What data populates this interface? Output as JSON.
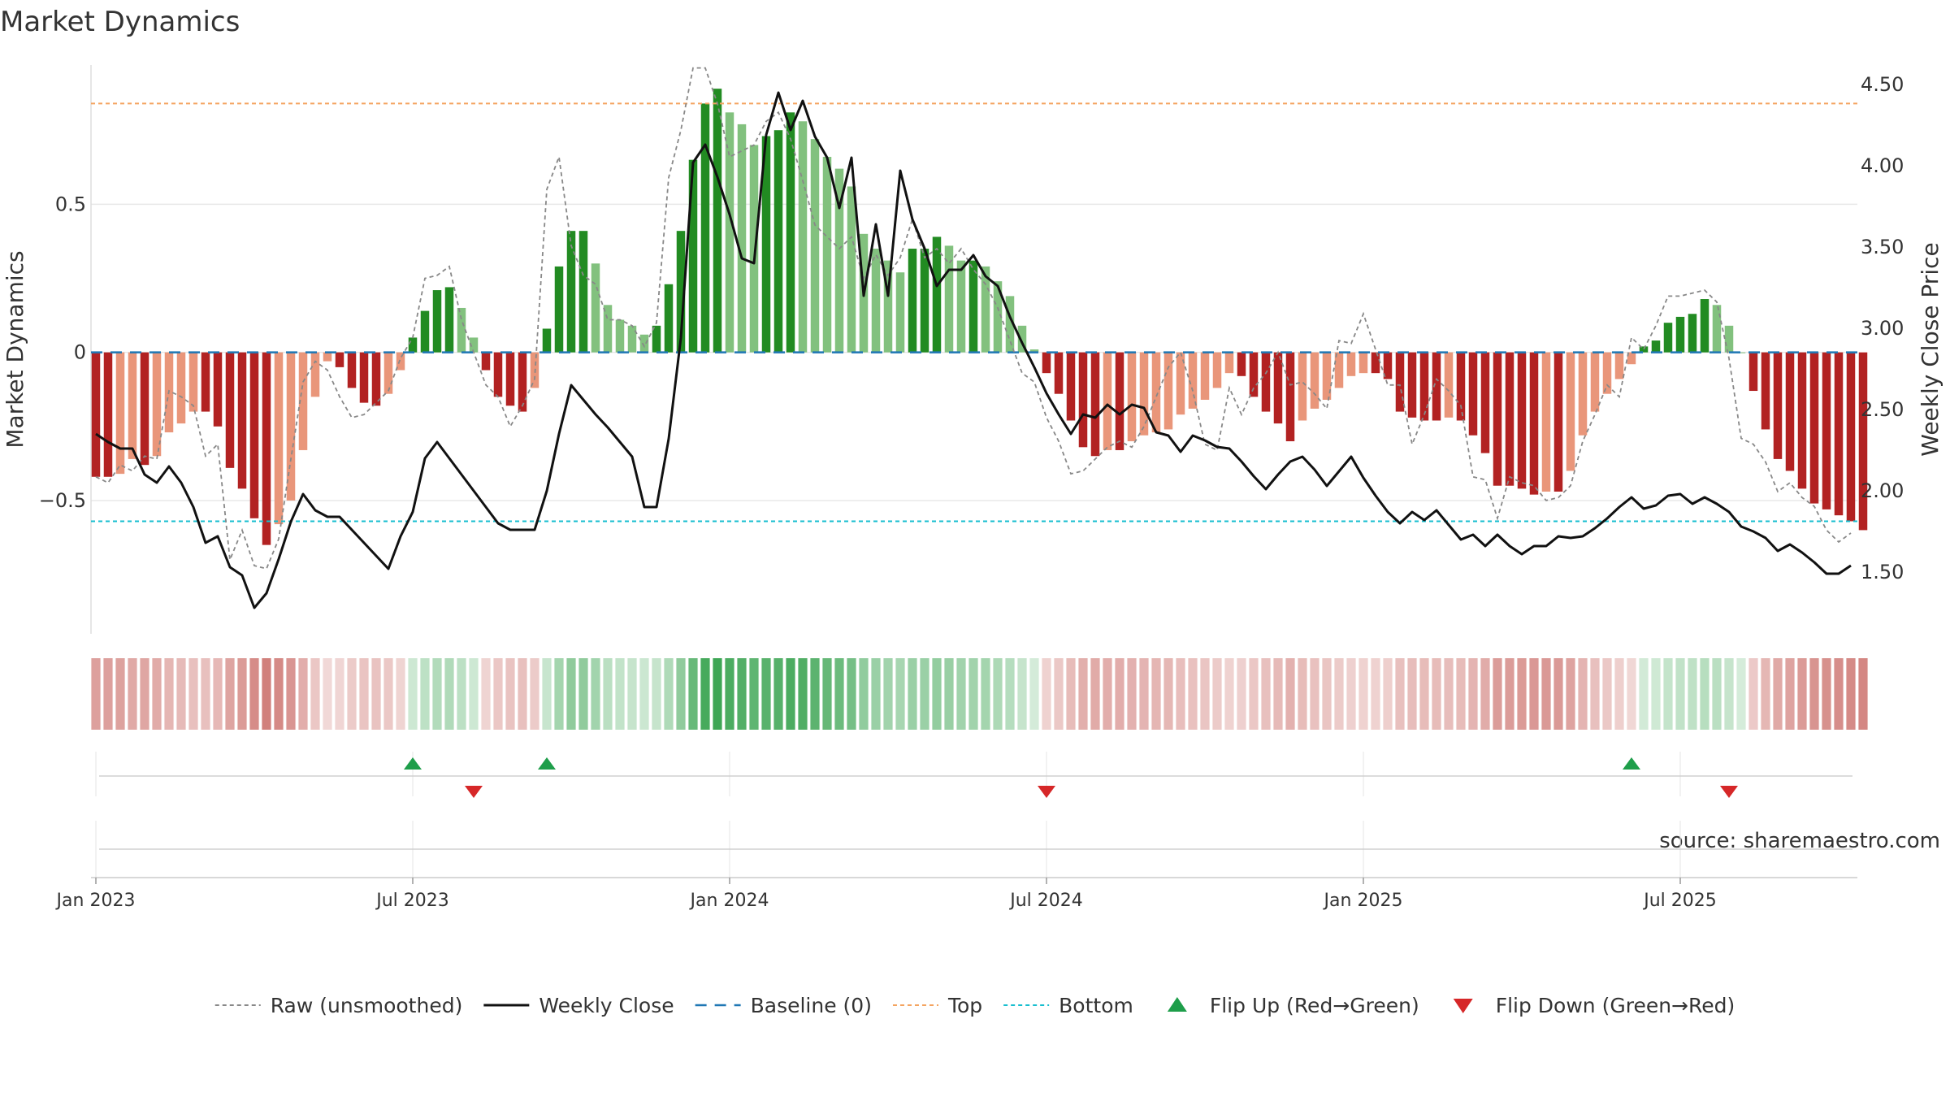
{
  "chart_data": {
    "type": "bar",
    "title": "Market Dynamics",
    "ylabel": "Market Dynamics",
    "y2label": "Weekly Close Price",
    "ylim": [
      -0.95,
      0.97
    ],
    "y2lim": [
      1.12,
      4.62
    ],
    "yticks": [
      {
        "v": 0.5,
        "label": "0.5"
      },
      {
        "v": 0,
        "label": "0"
      },
      {
        "v": -0.5,
        "label": "−0.5"
      }
    ],
    "y2ticks": [
      "4.50",
      "4.00",
      "3.50",
      "3.00",
      "2.50",
      "2.00",
      "1.50"
    ],
    "xticks": [
      "Jan 2023",
      "Jul 2023",
      "Jan 2024",
      "Jul 2024",
      "Jan 2025",
      "Jul 2025"
    ],
    "xtick_weeks": [
      0,
      26,
      52,
      78,
      104,
      130
    ],
    "top_level": 0.84,
    "bottom_level": -0.57,
    "grid": true,
    "legend_position": "bottom",
    "colors": {
      "strong_up": "#228b22",
      "weak_up": "#82c17e",
      "strong_down": "#b22222",
      "weak_down": "#e9967a",
      "price": "#111111",
      "raw": "#888888",
      "baseline": "#1f77b4",
      "top": "#f4a460",
      "bottom": "#17becf",
      "flip_up": "#1e9e4a",
      "flip_down": "#d62728"
    },
    "weeks": 145,
    "bars": [
      -0.42,
      -0.42,
      -0.41,
      -0.36,
      -0.38,
      -0.35,
      -0.27,
      -0.24,
      -0.2,
      -0.2,
      -0.25,
      -0.39,
      -0.46,
      -0.56,
      -0.65,
      -0.58,
      -0.5,
      -0.33,
      -0.15,
      -0.03,
      -0.05,
      -0.12,
      -0.17,
      -0.18,
      -0.14,
      -0.06,
      0.05,
      0.14,
      0.21,
      0.22,
      0.15,
      0.05,
      -0.06,
      -0.15,
      -0.18,
      -0.2,
      -0.12,
      0.08,
      0.29,
      0.41,
      0.41,
      0.3,
      0.16,
      0.11,
      0.09,
      0.06,
      0.09,
      0.23,
      0.41,
      0.65,
      0.84,
      0.89,
      0.81,
      0.77,
      0.7,
      0.73,
      0.75,
      0.81,
      0.78,
      0.72,
      0.66,
      0.62,
      0.56,
      0.4,
      0.35,
      0.31,
      0.27,
      0.35,
      0.35,
      0.39,
      0.36,
      0.31,
      0.31,
      0.29,
      0.24,
      0.19,
      0.09,
      0.01,
      -0.07,
      -0.14,
      -0.23,
      -0.32,
      -0.35,
      -0.33,
      -0.33,
      -0.3,
      -0.28,
      -0.27,
      -0.26,
      -0.21,
      -0.19,
      -0.16,
      -0.12,
      -0.07,
      -0.08,
      -0.15,
      -0.2,
      -0.24,
      -0.3,
      -0.23,
      -0.19,
      -0.16,
      -0.12,
      -0.08,
      -0.07,
      -0.07,
      -0.09,
      -0.2,
      -0.22,
      -0.23,
      -0.23,
      -0.22,
      -0.23,
      -0.28,
      -0.34,
      -0.45,
      -0.45,
      -0.46,
      -0.48,
      -0.47,
      -0.47,
      -0.4,
      -0.28,
      -0.2,
      -0.14,
      -0.09,
      -0.04,
      0.02,
      0.04,
      0.1,
      0.12,
      0.13,
      0.18,
      0.16,
      0.09,
      0.0,
      -0.13,
      -0.26,
      -0.36,
      -0.4,
      -0.46,
      -0.51,
      -0.53,
      -0.55,
      -0.57,
      -0.6
    ],
    "raw": [
      -0.42,
      -0.44,
      -0.38,
      -0.4,
      -0.35,
      -0.36,
      -0.13,
      -0.15,
      -0.18,
      -0.35,
      -0.31,
      -0.7,
      -0.6,
      -0.72,
      -0.73,
      -0.63,
      -0.36,
      -0.1,
      -0.03,
      -0.06,
      -0.15,
      -0.22,
      -0.21,
      -0.17,
      -0.13,
      -0.02,
      0.05,
      0.25,
      0.26,
      0.29,
      0.11,
      0.0,
      -0.11,
      -0.15,
      -0.25,
      -0.18,
      -0.09,
      0.55,
      0.66,
      0.36,
      0.26,
      0.23,
      0.11,
      0.11,
      0.09,
      0.02,
      0.1,
      0.59,
      0.75,
      0.96,
      0.96,
      0.84,
      0.66,
      0.68,
      0.7,
      0.78,
      0.81,
      0.72,
      0.58,
      0.43,
      0.39,
      0.35,
      0.39,
      0.25,
      0.33,
      0.26,
      0.32,
      0.45,
      0.32,
      0.35,
      0.3,
      0.35,
      0.28,
      0.23,
      0.15,
      0.04,
      -0.07,
      -0.1,
      -0.22,
      -0.3,
      -0.41,
      -0.4,
      -0.36,
      -0.32,
      -0.3,
      -0.32,
      -0.25,
      -0.15,
      -0.05,
      0.0,
      -0.13,
      -0.31,
      -0.33,
      -0.12,
      -0.21,
      -0.12,
      -0.07,
      0.0,
      -0.11,
      -0.1,
      -0.14,
      -0.19,
      0.04,
      0.03,
      0.13,
      0.01,
      -0.11,
      -0.11,
      -0.31,
      -0.21,
      -0.09,
      -0.13,
      -0.18,
      -0.42,
      -0.43,
      -0.56,
      -0.42,
      -0.44,
      -0.45,
      -0.5,
      -0.49,
      -0.45,
      -0.3,
      -0.21,
      -0.11,
      -0.15,
      0.05,
      0.01,
      0.09,
      0.19,
      0.19,
      0.2,
      0.21,
      0.17,
      -0.02,
      -0.29,
      -0.31,
      -0.37,
      -0.47,
      -0.44,
      -0.49,
      -0.52,
      -0.6,
      -0.64,
      -0.61
    ],
    "price": [
      2.35,
      2.3,
      2.26,
      2.26,
      2.1,
      2.05,
      2.15,
      2.05,
      1.9,
      1.68,
      1.72,
      1.53,
      1.48,
      1.28,
      1.37,
      1.58,
      1.81,
      1.98,
      1.88,
      1.84,
      1.84,
      1.76,
      1.68,
      1.6,
      1.52,
      1.72,
      1.87,
      2.2,
      2.3,
      2.2,
      2.1,
      2.0,
      1.9,
      1.8,
      1.76,
      1.76,
      1.76,
      2.0,
      2.35,
      2.65,
      2.56,
      2.47,
      2.39,
      2.3,
      2.21,
      1.9,
      1.9,
      2.32,
      2.94,
      4.02,
      4.13,
      3.93,
      3.7,
      3.43,
      3.4,
      4.19,
      4.45,
      4.22,
      4.4,
      4.18,
      4.05,
      3.74,
      4.05,
      3.2,
      3.64,
      3.2,
      3.97,
      3.67,
      3.49,
      3.26,
      3.36,
      3.36,
      3.45,
      3.32,
      3.26,
      3.07,
      2.91,
      2.76,
      2.6,
      2.47,
      2.35,
      2.47,
      2.45,
      2.53,
      2.47,
      2.53,
      2.51,
      2.36,
      2.34,
      2.24,
      2.34,
      2.31,
      2.27,
      2.26,
      2.18,
      2.09,
      2.01,
      2.1,
      2.18,
      2.21,
      2.13,
      2.03,
      2.12,
      2.21,
      2.08,
      1.97,
      1.87,
      1.8,
      1.87,
      1.82,
      1.88,
      1.79,
      1.7,
      1.73,
      1.66,
      1.73,
      1.66,
      1.61,
      1.66,
      1.66,
      1.72,
      1.71,
      1.72,
      1.77,
      1.83,
      1.9,
      1.96,
      1.89,
      1.91,
      1.97,
      1.98,
      1.92,
      1.96,
      1.92,
      1.87,
      1.78,
      1.75,
      1.71,
      1.63,
      1.67,
      1.62,
      1.56,
      1.49,
      1.49,
      1.54
    ],
    "flip_up_weeks": [
      26,
      37,
      126
    ],
    "flip_down_weeks": [
      31,
      78,
      134
    ],
    "source": "source: sharemaestro.com",
    "legend": [
      {
        "key": "raw",
        "label": "Raw (unsmoothed)",
        "symbol": "dotted-line"
      },
      {
        "key": "price",
        "label": "Weekly Close",
        "symbol": "solid-line"
      },
      {
        "key": "baseline",
        "label": "Baseline (0)",
        "symbol": "dashed-line"
      },
      {
        "key": "top",
        "label": "Top",
        "symbol": "dotted-line"
      },
      {
        "key": "bottom",
        "label": "Bottom",
        "symbol": "dotted-line"
      },
      {
        "key": "flip_up",
        "label": "Flip Up (Red→Green)",
        "symbol": "triangle-up"
      },
      {
        "key": "flip_down",
        "label": "Flip Down (Green→Red)",
        "symbol": "triangle-down"
      }
    ]
  }
}
